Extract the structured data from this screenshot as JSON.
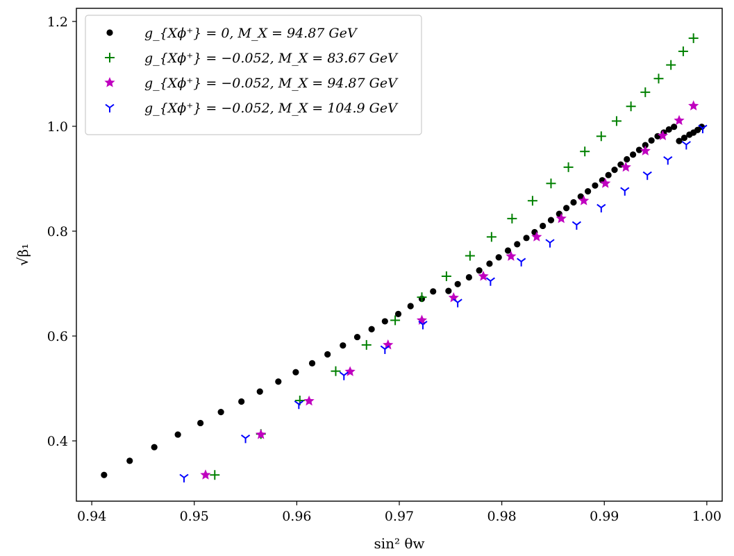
{
  "chart_data": {
    "type": "scatter",
    "xlabel": "sin² θw",
    "ylabel": "√β₁",
    "xlim": [
      0.9385,
      1.0015
    ],
    "ylim": [
      0.285,
      1.225
    ],
    "x_ticks": [
      "0.94",
      "0.95",
      "0.96",
      "0.97",
      "0.98",
      "0.99",
      "1.00"
    ],
    "x_tick_values": [
      0.94,
      0.95,
      0.96,
      0.97,
      0.98,
      0.99,
      1.0
    ],
    "y_ticks": [
      "0.4",
      "0.6",
      "0.8",
      "1.0",
      "1.2"
    ],
    "y_tick_values": [
      0.4,
      0.6,
      0.8,
      1.0,
      1.2
    ],
    "grid": false,
    "legend_placement": "upper-left",
    "series": [
      {
        "name": "g_{Xϕ⁺} = 0, M_X = 94.87 GeV",
        "marker": "circle",
        "color": "#000000",
        "x": [
          0.9412,
          0.9437,
          0.9461,
          0.9484,
          0.9506,
          0.9526,
          0.9546,
          0.9564,
          0.9582,
          0.9599,
          0.9615,
          0.963,
          0.9645,
          0.9659,
          0.9673,
          0.9686,
          0.9699,
          0.9711,
          0.9722,
          0.9733,
          0.9748,
          0.9757,
          0.9768,
          0.9778,
          0.9788,
          0.9797,
          0.9806,
          0.9815,
          0.9824,
          0.9832,
          0.984,
          0.9848,
          0.9856,
          0.9863,
          0.987,
          0.9877,
          0.9884,
          0.9891,
          0.9898,
          0.9904,
          0.991,
          0.9916,
          0.9922,
          0.9928,
          0.9934,
          0.994,
          0.9946,
          0.9952,
          0.9958,
          0.9963,
          0.9968,
          0.9973,
          0.9978,
          0.9983,
          0.9987,
          0.9991,
          0.9995
        ],
        "y": [
          0.335,
          0.362,
          0.388,
          0.412,
          0.434,
          0.455,
          0.475,
          0.494,
          0.513,
          0.531,
          0.548,
          0.565,
          0.582,
          0.598,
          0.613,
          0.628,
          0.642,
          0.657,
          0.671,
          0.685,
          0.686,
          0.699,
          0.712,
          0.725,
          0.738,
          0.75,
          0.763,
          0.775,
          0.787,
          0.798,
          0.81,
          0.821,
          0.833,
          0.844,
          0.855,
          0.866,
          0.876,
          0.887,
          0.897,
          0.907,
          0.917,
          0.927,
          0.937,
          0.946,
          0.955,
          0.964,
          0.973,
          0.981,
          0.988,
          0.994,
          0.999,
          0.972,
          0.978,
          0.984,
          0.988,
          0.993,
          0.999
        ]
      },
      {
        "name": "g_{Xϕ⁺} = −0.052, M_X = 83.67 GeV",
        "marker": "plus",
        "color": "#008000",
        "x": [
          0.952,
          0.9565,
          0.9603,
          0.9638,
          0.9668,
          0.9696,
          0.9722,
          0.9746,
          0.9769,
          0.979,
          0.981,
          0.983,
          0.9848,
          0.9865,
          0.9881,
          0.9897,
          0.9912,
          0.9926,
          0.994,
          0.9953,
          0.9965,
          0.9977,
          0.9987
        ],
        "y": [
          0.335,
          0.413,
          0.477,
          0.533,
          0.583,
          0.63,
          0.674,
          0.714,
          0.753,
          0.789,
          0.824,
          0.858,
          0.891,
          0.922,
          0.952,
          0.981,
          1.01,
          1.038,
          1.065,
          1.091,
          1.117,
          1.143,
          1.168
        ]
      },
      {
        "name": "g_{Xϕ⁺} = −0.052, M_X = 94.87 GeV",
        "marker": "star",
        "color": "#BF00BF",
        "x": [
          0.9511,
          0.9565,
          0.9612,
          0.9652,
          0.9689,
          0.9722,
          0.9753,
          0.9782,
          0.9809,
          0.9834,
          0.9858,
          0.988,
          0.9901,
          0.9921,
          0.994,
          0.9957,
          0.9973,
          0.9987
        ],
        "y": [
          0.335,
          0.412,
          0.476,
          0.532,
          0.583,
          0.63,
          0.673,
          0.714,
          0.752,
          0.789,
          0.824,
          0.858,
          0.891,
          0.922,
          0.953,
          0.982,
          1.011,
          1.039
        ]
      },
      {
        "name": "g_{Xϕ⁺} = −0.052, M_X = 104.9 GeV",
        "marker": "tri-down",
        "color": "#0000FF",
        "x": [
          0.949,
          0.955,
          0.9602,
          0.9646,
          0.9686,
          0.9723,
          0.9757,
          0.9789,
          0.9819,
          0.9847,
          0.9873,
          0.9897,
          0.992,
          0.9942,
          0.9962,
          0.998,
          0.9996
        ],
        "y": [
          0.33,
          0.405,
          0.47,
          0.525,
          0.575,
          0.622,
          0.664,
          0.705,
          0.742,
          0.778,
          0.812,
          0.845,
          0.877,
          0.907,
          0.936,
          0.965,
          0.996
        ]
      }
    ]
  }
}
